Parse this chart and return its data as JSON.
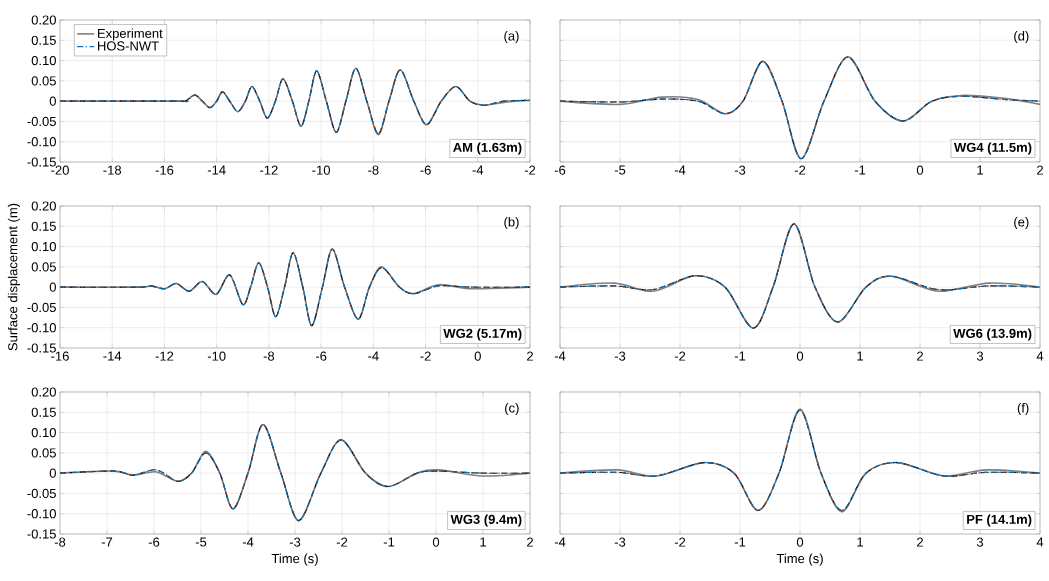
{
  "chart_data": [
    {
      "type": "line",
      "x": [
        -20,
        -15.5,
        -15.2,
        -14.84,
        -14.55,
        -14.26,
        -14.0,
        -13.78,
        -13.5,
        -13.19,
        -12.9,
        -12.65,
        -12.35,
        -12.06,
        -11.75,
        -11.46,
        -11.1,
        -10.77,
        -10.47,
        -10.17,
        -9.8,
        -9.42,
        -9.05,
        -8.67,
        -8.25,
        -7.81,
        -7.4,
        -6.97,
        -6.45,
        -5.96,
        -5.4,
        -4.84,
        -4.3,
        -3.74,
        -3,
        -2
      ],
      "xlim": [
        -20,
        -2
      ],
      "xticks": [
        -20,
        -18,
        -16,
        -14,
        -12,
        -10,
        -8,
        -6,
        -4,
        -2
      ],
      "ylim": [
        -0.15,
        0.2
      ],
      "yticks": [
        {
          "value": -0.15,
          "label": "-0.15"
        },
        {
          "value": -0.1,
          "label": "-0.10"
        },
        {
          "value": -0.05,
          "label": "-0.05"
        },
        0,
        {
          "value": 0.05,
          "label": "0.05"
        },
        {
          "value": 0.1,
          "label": "0.10"
        },
        {
          "value": 0.15,
          "label": "0.15"
        },
        {
          "value": 0.2,
          "label": "0.20"
        }
      ],
      "grid": true,
      "legend": "top left",
      "annotations": [
        "(a)",
        "AM (1.63m)"
      ],
      "series": [
        {
          "name": "Experiment",
          "color": "#808080",
          "line_style": "solid",
          "values": [
            0,
            0,
            0,
            0.015,
            0,
            -0.016,
            0,
            0.023,
            0,
            -0.026,
            0,
            0.036,
            0,
            -0.042,
            0,
            0.055,
            0,
            -0.062,
            0,
            0.075,
            0,
            -0.077,
            0,
            0.081,
            0,
            -0.083,
            0,
            0.077,
            0,
            -0.058,
            0,
            0.036,
            0,
            -0.01,
            -0.003,
            0.002
          ]
        },
        {
          "color": "#000000",
          "line_style": "dashed",
          "values": [
            0,
            0,
            0,
            0.015,
            0,
            -0.016,
            0,
            0.023,
            0,
            -0.026,
            0,
            0.036,
            0,
            -0.042,
            0,
            0.055,
            0,
            -0.062,
            0,
            0.075,
            0,
            -0.077,
            0,
            0.081,
            0,
            -0.08,
            0,
            0.077,
            0,
            -0.058,
            0,
            0.036,
            0,
            -0.01,
            0,
            0.002
          ]
        },
        {
          "color": "#d95319",
          "line_style": "dotted",
          "values": [
            0,
            0,
            0,
            0.015,
            0,
            -0.016,
            0,
            0.023,
            0,
            -0.026,
            0,
            0.036,
            0,
            -0.042,
            0,
            0.055,
            0,
            -0.062,
            0,
            0.075,
            0,
            -0.077,
            0,
            0.081,
            0,
            -0.08,
            0,
            0.077,
            0,
            -0.058,
            0,
            0.036,
            0,
            -0.01,
            0,
            0.002
          ]
        },
        {
          "name": "HOS-NWT",
          "color": "#0072bd",
          "line_style": "dashdot",
          "values": [
            0,
            0,
            0,
            0.015,
            0,
            -0.016,
            0,
            0.023,
            0,
            -0.026,
            0,
            0.036,
            0,
            -0.042,
            0,
            0.055,
            0,
            -0.062,
            0,
            0.075,
            0,
            -0.077,
            0,
            0.081,
            0,
            -0.08,
            0,
            0.077,
            0,
            -0.058,
            0,
            0.036,
            0,
            -0.01,
            0,
            0.002
          ]
        }
      ]
    },
    {
      "type": "line",
      "x": [
        -6,
        -5,
        -4.3,
        -3.7,
        -3.25,
        -2.95,
        -2.62,
        -2.3,
        -1.98,
        -1.6,
        -1.2,
        -0.75,
        -0.28,
        0.2,
        0.7,
        1.4,
        2
      ],
      "xlim": [
        -6,
        2
      ],
      "xticks": [
        -6,
        -5,
        -4,
        -3,
        -2,
        -1,
        0,
        1,
        2
      ],
      "ylim": [
        -0.15,
        0.2
      ],
      "yticks": [
        -0.15,
        -0.1,
        -0.05,
        0,
        0.05,
        0.1,
        0.15,
        0.2
      ],
      "grid": true,
      "tick_labels": "x",
      "annotations": [
        "(d)",
        "WG4 (11.5m)"
      ],
      "series": [
        {
          "color": "#808080",
          "line_style": "solid",
          "values": [
            0,
            -0.008,
            0.01,
            0.004,
            -0.031,
            0,
            0.098,
            0,
            -0.142,
            0,
            0.109,
            0,
            -0.049,
            0,
            0.014,
            0.007,
            -0.008
          ]
        },
        {
          "color": "#000000",
          "line_style": "dashed",
          "values": [
            0,
            -0.002,
            0.005,
            0,
            -0.031,
            0,
            0.098,
            0,
            -0.142,
            0,
            0.109,
            0,
            -0.049,
            0,
            0.012,
            0.004,
            0
          ]
        },
        {
          "color": "#d95319",
          "line_style": "dotted",
          "values": [
            0,
            -0.002,
            0.005,
            0,
            -0.031,
            0,
            0.098,
            0,
            -0.142,
            0,
            0.109,
            0,
            -0.049,
            0,
            0.012,
            0.004,
            0
          ]
        },
        {
          "color": "#0072bd",
          "line_style": "dashdot",
          "values": [
            0,
            -0.002,
            0.005,
            0,
            -0.031,
            0,
            0.098,
            0,
            -0.142,
            0,
            0.109,
            0,
            -0.049,
            0,
            0.012,
            0.004,
            0
          ]
        }
      ]
    },
    {
      "type": "line",
      "x": [
        -16,
        -13,
        -12.52,
        -12.0,
        -11.55,
        -11.05,
        -10.55,
        -10.02,
        -9.5,
        -9.0,
        -8.7,
        -8.39,
        -8.05,
        -7.74,
        -7.4,
        -7.07,
        -6.7,
        -6.36,
        -5.95,
        -5.57,
        -5.1,
        -4.58,
        -4.15,
        -3.68,
        -3.0,
        -2.45,
        -1.5,
        -0.2,
        2
      ],
      "xlim": [
        -16,
        2
      ],
      "xticks": [
        -16,
        -14,
        -12,
        -10,
        -8,
        -6,
        -4,
        -2,
        0,
        2
      ],
      "ylim": [
        -0.15,
        0.2
      ],
      "yticks": [
        {
          "value": -0.15,
          "label": "-0.15"
        },
        {
          "value": -0.1,
          "label": "-0.10"
        },
        {
          "value": -0.05,
          "label": "-0.05"
        },
        0,
        {
          "value": 0.05,
          "label": "0.05"
        },
        {
          "value": 0.1,
          "label": "0.10"
        },
        {
          "value": 0.15,
          "label": "0.15"
        },
        {
          "value": 0.2,
          "label": "0.20"
        }
      ],
      "grid": true,
      "ylabel": "Surface displacement (m)",
      "annotations": [
        "(b)",
        "WG2 (5.17m)"
      ],
      "series": [
        {
          "color": "#808080",
          "line_style": "solid",
          "values": [
            0,
            0,
            0.003,
            -0.004,
            0.009,
            -0.01,
            0.014,
            -0.018,
            0.03,
            -0.043,
            0,
            0.06,
            0,
            -0.073,
            0,
            0.085,
            0,
            -0.095,
            0,
            0.094,
            0,
            -0.079,
            0,
            0.05,
            0,
            -0.016,
            0.006,
            -0.004,
            0
          ]
        },
        {
          "color": "#000000",
          "line_style": "dashed",
          "values": [
            0,
            0,
            0.003,
            -0.004,
            0.009,
            -0.01,
            0.014,
            -0.018,
            0.03,
            -0.043,
            0,
            0.06,
            0,
            -0.073,
            0,
            0.085,
            0,
            -0.095,
            0,
            0.094,
            0,
            -0.079,
            0,
            0.048,
            0,
            -0.016,
            0.003,
            0,
            0
          ]
        },
        {
          "color": "#d95319",
          "line_style": "dotted",
          "values": [
            0,
            0,
            0.003,
            -0.004,
            0.009,
            -0.01,
            0.014,
            -0.018,
            0.03,
            -0.043,
            0,
            0.06,
            0,
            -0.073,
            0,
            0.085,
            0,
            -0.095,
            0,
            0.094,
            0,
            -0.079,
            0,
            0.048,
            0,
            -0.016,
            0.003,
            0,
            0
          ]
        },
        {
          "color": "#0072bd",
          "line_style": "dashdot",
          "values": [
            0,
            0,
            0.003,
            -0.004,
            0.009,
            -0.01,
            0.014,
            -0.018,
            0.03,
            -0.043,
            0,
            0.06,
            0,
            -0.073,
            0,
            0.085,
            0,
            -0.095,
            0,
            0.094,
            0,
            -0.079,
            0,
            0.048,
            0,
            -0.016,
            0.003,
            0,
            0
          ]
        }
      ]
    },
    {
      "type": "line",
      "x": [
        -4,
        -3.1,
        -2.45,
        -1.75,
        -1.25,
        -0.78,
        -0.45,
        -0.1,
        0.25,
        0.63,
        1.1,
        1.52,
        2.3,
        3.15,
        4
      ],
      "xlim": [
        -4,
        4
      ],
      "xticks": [
        -4,
        -3,
        -2,
        -1,
        0,
        1,
        2,
        3,
        4
      ],
      "ylim": [
        -0.15,
        0.2
      ],
      "yticks": [
        -0.15,
        -0.1,
        -0.05,
        0,
        0.05,
        0.1,
        0.15,
        0.2
      ],
      "grid": true,
      "tick_labels": "x",
      "annotations": [
        "(e)",
        "WG6 (13.9m)"
      ],
      "series": [
        {
          "color": "#808080",
          "line_style": "solid",
          "values": [
            0,
            0.01,
            -0.01,
            0.028,
            0,
            -0.101,
            0,
            0.156,
            0,
            -0.086,
            0,
            0.027,
            -0.01,
            0.01,
            0
          ]
        },
        {
          "color": "#000000",
          "line_style": "dashed",
          "values": [
            0,
            0.003,
            -0.006,
            0.028,
            0,
            -0.101,
            0,
            0.156,
            0,
            -0.086,
            0,
            0.027,
            -0.006,
            0.003,
            0
          ]
        },
        {
          "color": "#d95319",
          "line_style": "dotted",
          "values": [
            0,
            0.003,
            -0.006,
            0.028,
            0,
            -0.101,
            0,
            0.156,
            0,
            -0.086,
            0,
            0.027,
            -0.006,
            0.003,
            0
          ]
        },
        {
          "color": "#0072bd",
          "line_style": "dashdot",
          "values": [
            0,
            0.003,
            -0.006,
            0.028,
            0,
            -0.101,
            0,
            0.156,
            0,
            -0.086,
            0,
            0.027,
            -0.006,
            0.003,
            0
          ]
        }
      ]
    },
    {
      "type": "line",
      "x": [
        -8,
        -6.85,
        -6.45,
        -5.95,
        -5.5,
        -5.2,
        -4.9,
        -4.6,
        -4.32,
        -4.0,
        -3.68,
        -3.3,
        -2.92,
        -2.45,
        -2.02,
        -1.5,
        -1.02,
        -0.4,
        0.05,
        1.0,
        2
      ],
      "xlim": [
        -8,
        2
      ],
      "xticks": [
        -8,
        -7,
        -6,
        -5,
        -4,
        -3,
        -2,
        -1,
        0,
        1,
        2
      ],
      "ylim": [
        -0.15,
        0.2
      ],
      "yticks": [
        {
          "value": -0.15,
          "label": "-0.15"
        },
        {
          "value": -0.1,
          "label": "-0.10"
        },
        {
          "value": -0.05,
          "label": "-0.05"
        },
        0,
        {
          "value": 0.05,
          "label": "0.05"
        },
        {
          "value": 0.1,
          "label": "0.10"
        },
        {
          "value": 0.15,
          "label": "0.15"
        },
        {
          "value": 0.2,
          "label": "0.20"
        }
      ],
      "grid": true,
      "xlabel": "Time (s)",
      "annotations": [
        "(c)",
        "WG3 (9.4m)"
      ],
      "series": [
        {
          "color": "#808080",
          "line_style": "solid",
          "values": [
            0,
            0.005,
            -0.005,
            0.003,
            -0.02,
            0,
            0.054,
            0,
            -0.088,
            0,
            0.12,
            0,
            -0.117,
            0,
            0.082,
            0,
            -0.033,
            0,
            0.008,
            -0.007,
            0
          ]
        },
        {
          "color": "#000000",
          "line_style": "dashed",
          "values": [
            0,
            0.005,
            -0.005,
            0.008,
            -0.02,
            0,
            0.05,
            0,
            -0.088,
            0,
            0.12,
            0,
            -0.117,
            0,
            0.082,
            0,
            -0.033,
            0,
            0.005,
            0,
            0
          ]
        },
        {
          "color": "#d95319",
          "line_style": "dotted",
          "values": [
            0,
            0.005,
            -0.005,
            0.008,
            -0.02,
            0,
            0.05,
            0,
            -0.088,
            0,
            0.12,
            0,
            -0.117,
            0,
            0.082,
            0,
            -0.033,
            0,
            0.005,
            0,
            0
          ]
        },
        {
          "color": "#0072bd",
          "line_style": "dashdot",
          "values": [
            0,
            0.005,
            -0.005,
            0.008,
            -0.02,
            0,
            0.05,
            0,
            -0.088,
            0,
            0.12,
            0,
            -0.117,
            0,
            0.082,
            0,
            -0.033,
            0,
            0.005,
            0,
            0
          ]
        }
      ]
    },
    {
      "type": "line",
      "x": [
        -4,
        -3.05,
        -2.4,
        -1.6,
        -1.1,
        -0.7,
        -0.35,
        0,
        0.35,
        0.7,
        1.1,
        1.62,
        2.4,
        3.1,
        4
      ],
      "xlim": [
        -4,
        4
      ],
      "xticks": [
        -4,
        -3,
        -2,
        -1,
        0,
        1,
        2,
        3,
        4
      ],
      "ylim": [
        -0.15,
        0.2
      ],
      "yticks": [
        -0.15,
        -0.1,
        -0.05,
        0,
        0.05,
        0.1,
        0.15,
        0.2
      ],
      "grid": true,
      "tick_labels": "x",
      "xlabel": "Time (s)",
      "annotations": [
        "(f)",
        "PF (14.1m)"
      ],
      "series": [
        {
          "color": "#808080",
          "line_style": "solid",
          "values": [
            0,
            0.008,
            -0.007,
            0.026,
            0,
            -0.092,
            0,
            0.158,
            0,
            -0.095,
            0,
            0.026,
            -0.007,
            0.008,
            0
          ]
        },
        {
          "color": "#000000",
          "line_style": "dashed",
          "values": [
            0,
            0.002,
            -0.007,
            0.026,
            0,
            -0.092,
            0,
            0.155,
            0,
            -0.092,
            0,
            0.026,
            -0.007,
            0.002,
            0
          ]
        },
        {
          "color": "#d95319",
          "line_style": "dotted",
          "values": [
            0,
            0.002,
            -0.007,
            0.026,
            0,
            -0.092,
            0,
            0.155,
            0,
            -0.092,
            0,
            0.026,
            -0.007,
            0.002,
            0
          ]
        },
        {
          "color": "#0072bd",
          "line_style": "dashdot",
          "values": [
            0,
            0.002,
            -0.007,
            0.026,
            0,
            -0.092,
            0,
            0.155,
            0,
            -0.092,
            0,
            0.026,
            -0.007,
            0.002,
            0
          ]
        }
      ]
    }
  ]
}
